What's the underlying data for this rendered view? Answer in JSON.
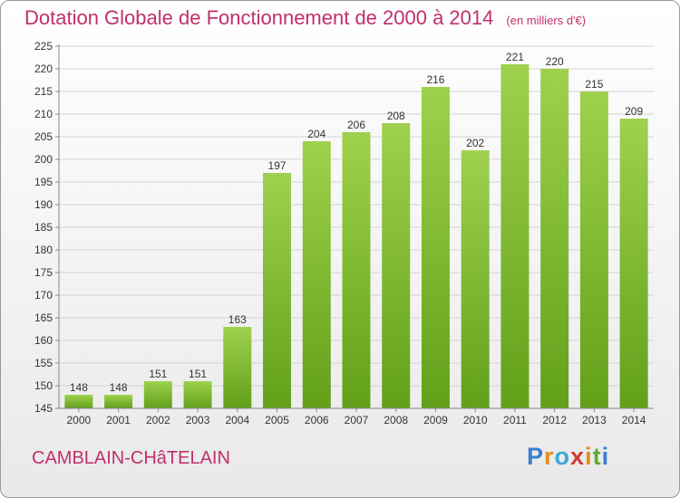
{
  "title": "Dotation Globale de Fonctionnement de 2000 à 2014",
  "unit": "(en milliers d'€)",
  "commune": "CAMBLAIN-CHâTELAIN",
  "logo": {
    "text": "Proxiti",
    "colors": [
      "#3a7fd0",
      "#e58a1f",
      "#3aa8d8",
      "#d23a3a",
      "#5cab2f"
    ]
  },
  "colors": {
    "bar_top": "#9ed14e",
    "bar_bottom": "#62a01a",
    "title": "#c0306b"
  },
  "chart_data": {
    "type": "bar",
    "categories": [
      "2000",
      "2001",
      "2002",
      "2003",
      "2004",
      "2005",
      "2006",
      "2007",
      "2008",
      "2009",
      "2010",
      "2011",
      "2012",
      "2013",
      "2014"
    ],
    "values": [
      148,
      148,
      151,
      151,
      163,
      197,
      204,
      206,
      208,
      216,
      202,
      221,
      220,
      215,
      209
    ],
    "ylim": [
      145,
      225
    ],
    "yticks": [
      145,
      150,
      155,
      160,
      165,
      170,
      175,
      180,
      185,
      190,
      195,
      200,
      205,
      210,
      215,
      220,
      225
    ],
    "grid": true,
    "legend": "none"
  }
}
